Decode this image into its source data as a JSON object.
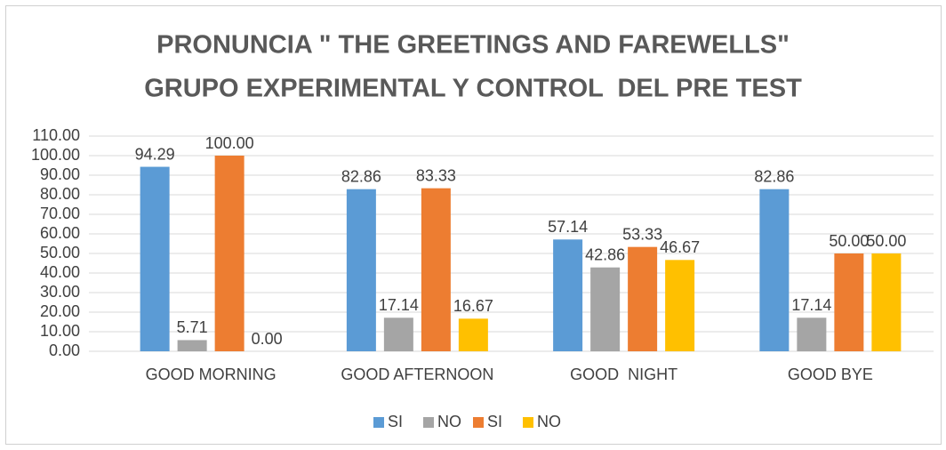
{
  "chart_data": {
    "type": "bar",
    "title": "PRONUNCIA \" THE GREETINGS AND FAREWELLS\"",
    "subtitle": "GRUPO EXPERIMENTAL Y CONTROL  DEL PRE TEST",
    "categories": [
      "GOOD MORNING",
      "GOOD AFTERNOON",
      "GOOD  NIGHT",
      "GOOD BYE"
    ],
    "series": [
      {
        "name": "SI",
        "color": "#5b9bd5",
        "values": [
          94.29,
          82.86,
          57.14,
          82.86
        ],
        "value_labels": [
          "94.29",
          "82.86",
          "57.14",
          "82.86"
        ]
      },
      {
        "name": "NO",
        "color": "#a5a5a5",
        "values": [
          5.71,
          17.14,
          42.86,
          17.14
        ],
        "value_labels": [
          "5.71",
          "17.14",
          "42.86",
          "17.14"
        ]
      },
      {
        "name": "SI",
        "color": "#ed7d31",
        "values": [
          100,
          83.33,
          53.33,
          50
        ],
        "value_labels": [
          "100.00",
          "83.33",
          "53.33",
          "50.00"
        ]
      },
      {
        "name": "NO",
        "color": "#ffc000",
        "values": [
          0,
          16.67,
          46.67,
          50
        ],
        "value_labels": [
          "0.00",
          "16.67",
          "46.67",
          "50.00"
        ]
      }
    ],
    "ylim": [
      0,
      110
    ],
    "yticks": [
      {
        "value": 0,
        "label": "0.00"
      },
      {
        "value": 10,
        "label": "10.00"
      },
      {
        "value": 20,
        "label": "20.00"
      },
      {
        "value": 30,
        "label": "30.00"
      },
      {
        "value": 40,
        "label": "40.00"
      },
      {
        "value": 50,
        "label": "50.00"
      },
      {
        "value": 60,
        "label": "60.00"
      },
      {
        "value": 70,
        "label": "70.00"
      },
      {
        "value": 80,
        "label": "80.00"
      },
      {
        "value": 90,
        "label": "90.00"
      },
      {
        "value": 100,
        "label": "100.00"
      },
      {
        "value": 110,
        "label": "110.00"
      }
    ],
    "grid": true,
    "legend": "bottom"
  }
}
